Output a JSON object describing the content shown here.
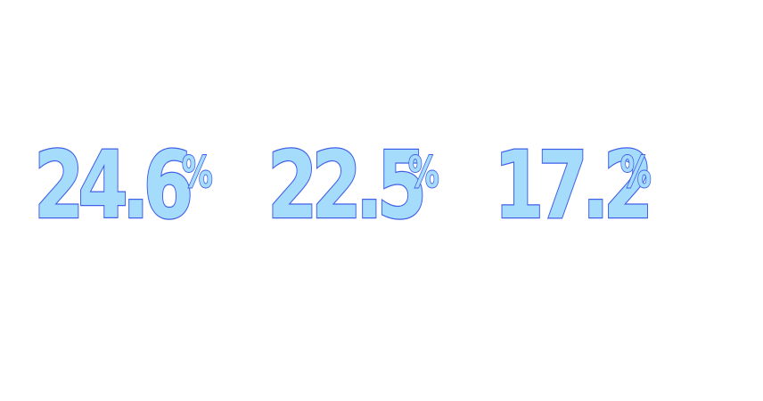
{
  "stats": [
    {
      "value": "24.6",
      "unit": "%"
    },
    {
      "value": "22.5",
      "unit": "%"
    },
    {
      "value": "17.2",
      "unit": "%"
    }
  ],
  "colors": {
    "fill": "#a6dcfb",
    "outline": "#3f5fe8",
    "background": "#ffffff"
  }
}
